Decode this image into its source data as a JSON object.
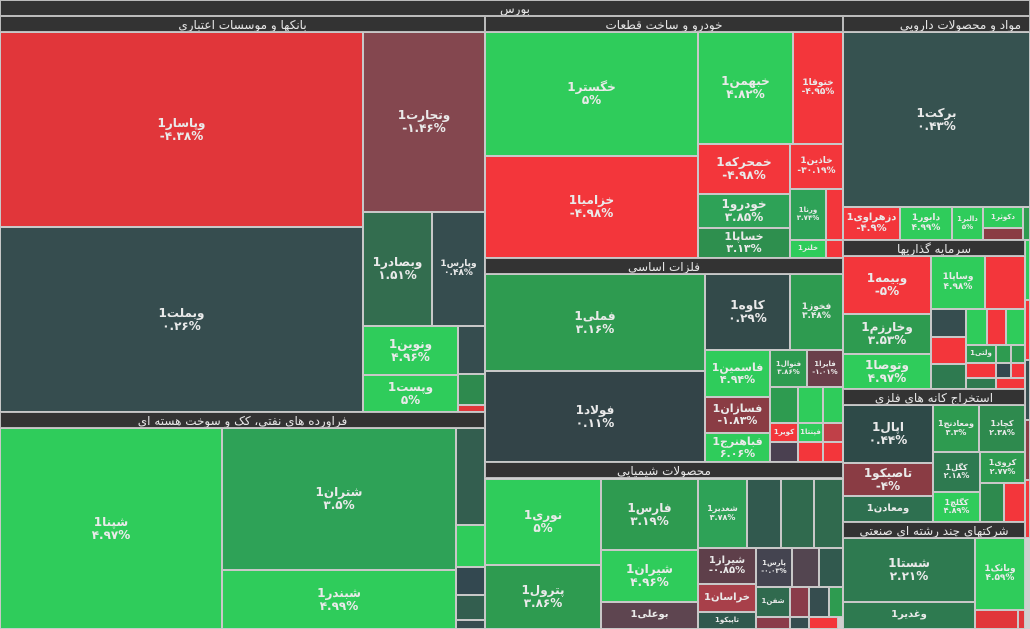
{
  "title": "بورس",
  "colors": {
    "bright_green": "#2fcc5b",
    "mid_green": "#2e9b52",
    "dark_green": "#2e7450",
    "slate": "#364d4f",
    "red": "#f3363b",
    "maroon": "#84474f",
    "dark_red": "#8a3c44"
  },
  "sectors": [
    {
      "id": "banks",
      "title": "بانکها و موسسات اعتباری"
    },
    {
      "id": "refinery",
      "title": "فراورده های نفتی، کک و سوخت هسته ای"
    },
    {
      "id": "auto",
      "title": "خودرو و ساخت قطعات"
    },
    {
      "id": "metals",
      "title": "فلزات اساسی"
    },
    {
      "id": "chemicals",
      "title": "محصولات شیمیایی"
    },
    {
      "id": "pharma",
      "title": "مواد و محصولات دارویی"
    },
    {
      "id": "investment",
      "title": "سرمایه گذاریها"
    },
    {
      "id": "mining",
      "title": "استخراج کانه های فلزی"
    },
    {
      "id": "multi",
      "title": "شرکتهای چند رشته ای صنعتی"
    }
  ],
  "tiles": [
    {
      "name": "وپاسار1",
      "pct": "-۴.۳۸%",
      "color": "#e1363a"
    },
    {
      "name": "وبملت1",
      "pct": "۰.۲۶%",
      "color": "#364d4f"
    },
    {
      "name": "وتجارت1",
      "pct": "-۱.۴۶%",
      "color": "#84474f"
    },
    {
      "name": "وبصادر1",
      "pct": "۱.۵۱%",
      "color": "#336d4f"
    },
    {
      "name": "وپارس1",
      "pct": "۰.۴۸%",
      "color": "#364d4f"
    },
    {
      "name": "ونوین1",
      "pct": "۴.۹۶%",
      "color": "#2fcc5b"
    },
    {
      "name": "وپست1",
      "pct": "۵%",
      "color": "#2fcc5b"
    },
    {
      "color": "#364d4f"
    },
    {
      "color": "#2e8a4e"
    },
    {
      "color": "#e1363a"
    },
    {
      "name": "شپنا1",
      "pct": "۴.۹۷%",
      "color": "#2fcc5b"
    },
    {
      "name": "شتران1",
      "pct": "۳.۵%",
      "color": "#2ea257"
    },
    {
      "name": "شبندر1",
      "pct": "۴.۹۹%",
      "color": "#2fcc5b"
    },
    {
      "color": "#335e4f"
    },
    {
      "color": "#2fcc5b"
    },
    {
      "color": "#334850"
    },
    {
      "color": "#335e4f"
    },
    {
      "color": "#364d4f"
    },
    {
      "name": "خگستر1",
      "pct": "۵%",
      "color": "#2fcc5b"
    },
    {
      "name": "خزامیا1",
      "pct": "-۴.۹۸%",
      "color": "#f3363b"
    },
    {
      "name": "خبهمن1",
      "pct": "۴.۸۲%",
      "color": "#2fcc5b"
    },
    {
      "name": "ختوقا1",
      "pct": "-۴.۹۵%",
      "color": "#f3363b"
    },
    {
      "name": "خمحرکه1",
      "pct": "-۴.۹۸%",
      "color": "#f3363b"
    },
    {
      "name": "خاذین1",
      "pct": "-۳۰.۱۹%",
      "color": "#f3363b"
    },
    {
      "name": "خودرو1",
      "pct": "۳.۸۵%",
      "color": "#2ea257"
    },
    {
      "name": "خساپا1",
      "pct": "۳.۱۳%",
      "color": "#2e8f4e"
    },
    {
      "name": "ورنا1",
      "pct": "۳.۷۴%",
      "color": "#2ea257"
    },
    {
      "color": "#f3363b"
    },
    {
      "name": "خلنر1",
      "color": "#2fcc5b"
    },
    {
      "color": "#f3363b"
    },
    {
      "name": "فملی1",
      "pct": "۳.۱۶%",
      "color": "#2e9b50"
    },
    {
      "name": "فولاد1",
      "pct": "۰.۱۱%",
      "color": "#334448"
    },
    {
      "name": "کاوه1",
      "pct": "۰.۲۹%",
      "color": "#334a4a"
    },
    {
      "name": "فخوز1",
      "pct": "۳.۴۸%",
      "color": "#2e9b50"
    },
    {
      "name": "فاسمین1",
      "pct": "۴.۹۴%",
      "color": "#2fcc5b"
    },
    {
      "name": "فسازان1",
      "pct": "-۱.۸۳%",
      "color": "#8a3c44"
    },
    {
      "name": "فباهنرج1",
      "pct": "۶.۰۶%",
      "color": "#2fcc5b"
    },
    {
      "name": "فنوال1",
      "pct": "۳.۸۶%",
      "color": "#2e9b50"
    },
    {
      "name": "فایرا1",
      "pct": "-۱.۰۱%",
      "color": "#6a3f4a"
    },
    {
      "color": "#2e9b50"
    },
    {
      "color": "#2fcc5b"
    },
    {
      "color": "#2fcc5b"
    },
    {
      "name": "کویر1",
      "color": "#f3363b"
    },
    {
      "name": "فپنتا1",
      "color": "#2fcc5b"
    },
    {
      "color": "#c04048"
    },
    {
      "color": "#4a4050"
    },
    {
      "color": "#f3363b"
    },
    {
      "color": "#f3363b"
    },
    {
      "name": "نوری1",
      "pct": "۵%",
      "color": "#2fcc5b"
    },
    {
      "name": "پترول1",
      "pct": "۳.۸۶%",
      "color": "#2e9b50"
    },
    {
      "name": "فارس1",
      "pct": "۳.۱۹%",
      "color": "#2e9b50"
    },
    {
      "name": "شیران1",
      "pct": "۴.۹۶%",
      "color": "#2fcc5b"
    },
    {
      "name": "بوعلی1",
      "color": "#5e4550"
    },
    {
      "name": "شغدیر1",
      "pct": "۳.۷۸%",
      "color": "#2ea257"
    },
    {
      "color": "#31594e"
    },
    {
      "color": "#306a4e"
    },
    {
      "color": "#306a4e"
    },
    {
      "name": "شیراز1",
      "pct": "-۰.۸۵%",
      "color": "#5e3f4a"
    },
    {
      "name": "پارس1",
      "pct": "-۰.۰۳%",
      "color": "#444450"
    },
    {
      "color": "#534550"
    },
    {
      "color": "#31594e"
    },
    {
      "name": "خراسان1",
      "color": "#a8404a"
    },
    {
      "name": "تاپیکو1",
      "color": "#31594e"
    },
    {
      "name": "شفن1",
      "color": "#306a4e"
    },
    {
      "color": "#8a3c4a"
    },
    {
      "color": "#364d4f"
    },
    {
      "color": "#2e9b50"
    },
    {
      "color": "#8a3c4a"
    },
    {
      "color": "#364d4f"
    },
    {
      "color": "#f3363b"
    },
    {
      "name": "برکت1",
      "pct": "۰.۴۳%",
      "color": "#365250"
    },
    {
      "name": "دزهراوی1",
      "pct": "-۴.۹%",
      "color": "#f3363b"
    },
    {
      "name": "دابور1",
      "pct": "۴.۹۹%",
      "color": "#2fcc5b"
    },
    {
      "name": "دالبر1",
      "pct": "۵%",
      "color": "#2fcc5b"
    },
    {
      "name": "دکوثر1",
      "color": "#2fcc5b"
    },
    {
      "color": "#8a3c44"
    },
    {
      "color": "#2e9b50"
    },
    {
      "name": "وبیمه1",
      "pct": "-۵%",
      "color": "#f3363b"
    },
    {
      "name": "وخارزم1",
      "pct": "۳.۵۳%",
      "color": "#2e9b50"
    },
    {
      "name": "وتوصا1",
      "pct": "۴.۹۷%",
      "color": "#2fcc5b"
    },
    {
      "name": "وساپا1",
      "pct": "۴.۹۸%",
      "color": "#2fcc5b"
    },
    {
      "color": "#f3363b"
    },
    {
      "color": "#364d4f"
    },
    {
      "color": "#2fcc5b"
    },
    {
      "color": "#f3363b"
    },
    {
      "color": "#2fcc5b"
    },
    {
      "color": "#f3363b"
    },
    {
      "color": "#2e7a50"
    },
    {
      "name": "ولتی1",
      "color": "#2e9b50"
    },
    {
      "color": "#2e9b50"
    },
    {
      "color": "#2e9b50"
    },
    {
      "color": "#f3363b"
    },
    {
      "color": "#334850"
    },
    {
      "color": "#f3363b"
    },
    {
      "color": "#2e7a50"
    },
    {
      "color": "#f3363b"
    },
    {
      "name": "اپال1",
      "pct": "۰.۴۴%",
      "color": "#2e4a48"
    },
    {
      "name": "تاصیکو1",
      "pct": "-۴%",
      "color": "#8a3c44"
    },
    {
      "name": "ومعادن1",
      "color": "#2e7050"
    },
    {
      "name": "ومعادنج1",
      "pct": "۳.۳%",
      "color": "#2e9b50"
    },
    {
      "name": "کچاد1",
      "pct": "۲.۳۸%",
      "color": "#2e8a4e"
    },
    {
      "name": "کگل1",
      "pct": "۲.۱۸%",
      "color": "#2e7a50"
    },
    {
      "name": "کروی1",
      "pct": "۲.۷۷%",
      "color": "#2e9b50"
    },
    {
      "name": "کگلچ1",
      "pct": "۴.۸۹%",
      "color": "#2fcc5b"
    },
    {
      "color": "#2e8a4e"
    },
    {
      "color": "#f3363b"
    },
    {
      "name": "شستا1",
      "pct": "۲.۲۱%",
      "color": "#2e7a50"
    },
    {
      "name": "وغدیر1",
      "color": "#2e7a50"
    },
    {
      "name": "وبانک1",
      "pct": "۴.۵۹%",
      "color": "#2fcc5b"
    },
    {
      "color": "#e1363a"
    },
    {
      "color": "#e1363a"
    },
    {
      "color": "#2fcc5b"
    },
    {
      "color": "#f3363b"
    },
    {
      "color": "#364d4f"
    },
    {
      "color": "#8a3c44"
    },
    {
      "color": "#f3363b"
    }
  ]
}
